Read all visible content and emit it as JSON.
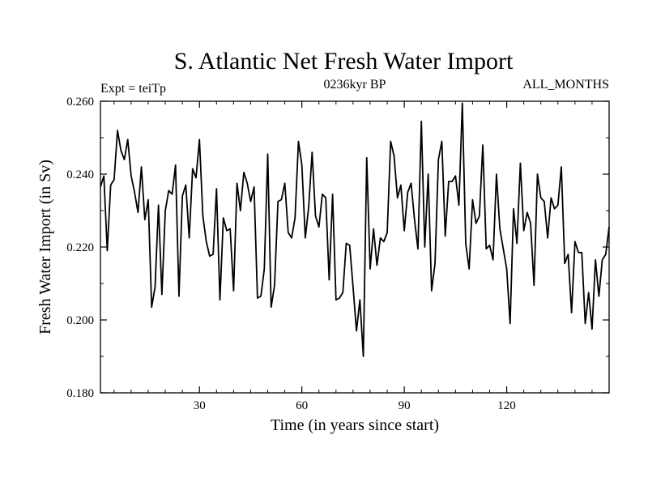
{
  "chart_data": {
    "type": "line",
    "title": "S. Atlantic Net Fresh Water Import",
    "subtitle_left": "Expt = teiTp",
    "subtitle_center": "0236kyr BP",
    "subtitle_right": "ALL_MONTHS",
    "xlabel": "Time (in years since start)",
    "ylabel": "Fresh Water Import (in Sv)",
    "xlim": [
      1,
      150
    ],
    "ylim": [
      0.18,
      0.26
    ],
    "x_ticks": [
      30,
      60,
      90,
      120
    ],
    "x_tick_labels": [
      "30",
      "60",
      "90",
      "120"
    ],
    "y_ticks": [
      0.18,
      0.2,
      0.22,
      0.24,
      0.26
    ],
    "y_tick_labels": [
      "0.180",
      "0.200",
      "0.220",
      "0.240",
      "0.260"
    ],
    "line_color": "#000000",
    "series": [
      {
        "name": "Net Fresh Water Import",
        "values": [
          0.2365,
          0.2395,
          0.219,
          0.237,
          0.2385,
          0.252,
          0.2465,
          0.244,
          0.2495,
          0.2395,
          0.235,
          0.2295,
          0.242,
          0.2275,
          0.233,
          0.2035,
          0.209,
          0.2315,
          0.207,
          0.23,
          0.2355,
          0.2345,
          0.2425,
          0.2065,
          0.234,
          0.237,
          0.2225,
          0.2415,
          0.239,
          0.2495,
          0.2285,
          0.2215,
          0.2175,
          0.218,
          0.236,
          0.2055,
          0.228,
          0.2245,
          0.225,
          0.208,
          0.2375,
          0.23,
          0.2405,
          0.2375,
          0.2325,
          0.2365,
          0.206,
          0.2065,
          0.214,
          0.2455,
          0.2035,
          0.2095,
          0.2325,
          0.233,
          0.2375,
          0.224,
          0.2225,
          0.228,
          0.249,
          0.2425,
          0.2225,
          0.231,
          0.246,
          0.2285,
          0.2255,
          0.2345,
          0.2335,
          0.211,
          0.2345,
          0.2055,
          0.206,
          0.2075,
          0.221,
          0.2205,
          0.209,
          0.197,
          0.2055,
          0.19,
          0.2445,
          0.214,
          0.225,
          0.215,
          0.2225,
          0.2215,
          0.224,
          0.249,
          0.245,
          0.2335,
          0.237,
          0.2245,
          0.235,
          0.2375,
          0.2275,
          0.2195,
          0.2545,
          0.22,
          0.24,
          0.208,
          0.2155,
          0.244,
          0.249,
          0.223,
          0.238,
          0.238,
          0.2395,
          0.2315,
          0.2595,
          0.221,
          0.214,
          0.233,
          0.2265,
          0.2285,
          0.248,
          0.2195,
          0.2205,
          0.2165,
          0.24,
          0.225,
          0.2195,
          0.214,
          0.199,
          0.2305,
          0.221,
          0.243,
          0.2245,
          0.2295,
          0.2265,
          0.2095,
          0.24,
          0.2335,
          0.2325,
          0.2225,
          0.2335,
          0.2305,
          0.2315,
          0.242,
          0.2155,
          0.218,
          0.202,
          0.2215,
          0.2185,
          0.2185,
          0.199,
          0.2075,
          0.1975,
          0.2165,
          0.2065,
          0.2165,
          0.218,
          0.2255
        ]
      }
    ]
  }
}
